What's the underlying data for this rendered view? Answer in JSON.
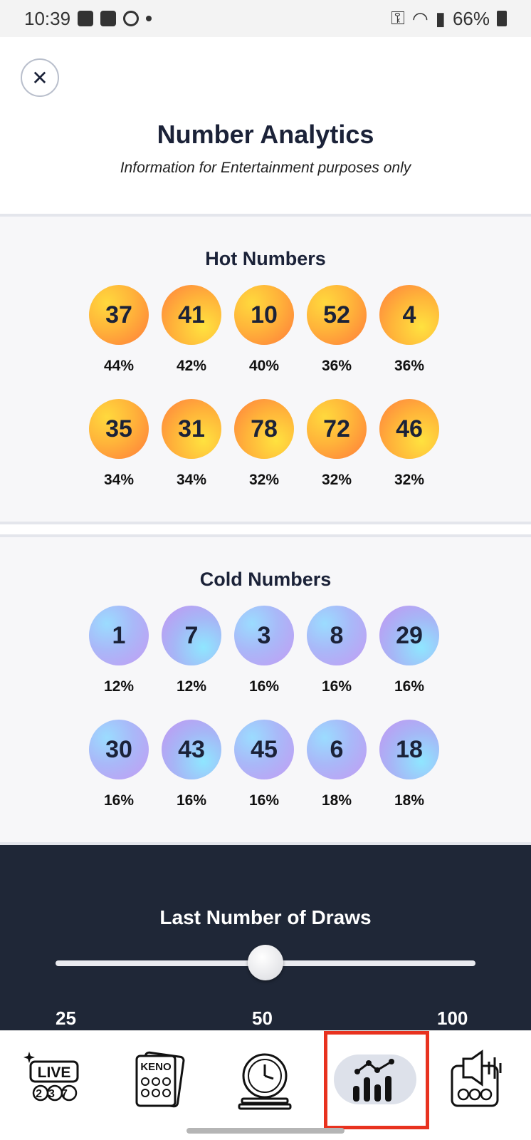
{
  "status_bar": {
    "time": "10:39",
    "battery": "66%"
  },
  "header": {
    "title": "Number Analytics",
    "subtitle": "Information for Entertainment purposes only",
    "close_icon": "close-icon"
  },
  "hot": {
    "title": "Hot Numbers",
    "balls": [
      {
        "number": "37",
        "percent": "44%"
      },
      {
        "number": "41",
        "percent": "42%"
      },
      {
        "number": "10",
        "percent": "40%"
      },
      {
        "number": "52",
        "percent": "36%"
      },
      {
        "number": "4",
        "percent": "36%"
      },
      {
        "number": "35",
        "percent": "34%"
      },
      {
        "number": "31",
        "percent": "34%"
      },
      {
        "number": "78",
        "percent": "32%"
      },
      {
        "number": "72",
        "percent": "32%"
      },
      {
        "number": "46",
        "percent": "32%"
      }
    ]
  },
  "cold": {
    "title": "Cold Numbers",
    "balls": [
      {
        "number": "1",
        "percent": "12%"
      },
      {
        "number": "7",
        "percent": "12%"
      },
      {
        "number": "3",
        "percent": "16%"
      },
      {
        "number": "8",
        "percent": "16%"
      },
      {
        "number": "29",
        "percent": "16%"
      },
      {
        "number": "30",
        "percent": "16%"
      },
      {
        "number": "43",
        "percent": "16%"
      },
      {
        "number": "45",
        "percent": "16%"
      },
      {
        "number": "6",
        "percent": "18%"
      },
      {
        "number": "18",
        "percent": "18%"
      }
    ]
  },
  "draws": {
    "title": "Last Number of Draws",
    "min": "25",
    "mid": "50",
    "max": "100",
    "value": 50
  },
  "nav": {
    "items": [
      {
        "icon": "live-icon",
        "label": "LIVE",
        "digits": "237",
        "active": false
      },
      {
        "icon": "keno-icon",
        "label": "KENO",
        "active": false
      },
      {
        "icon": "clock-icon",
        "active": false
      },
      {
        "icon": "analytics-icon",
        "active": true
      },
      {
        "icon": "announcement-icon",
        "active": false
      }
    ]
  },
  "colors": {
    "accent": "#e8321f",
    "dark": "#1f2737",
    "text": "#1b2238"
  }
}
